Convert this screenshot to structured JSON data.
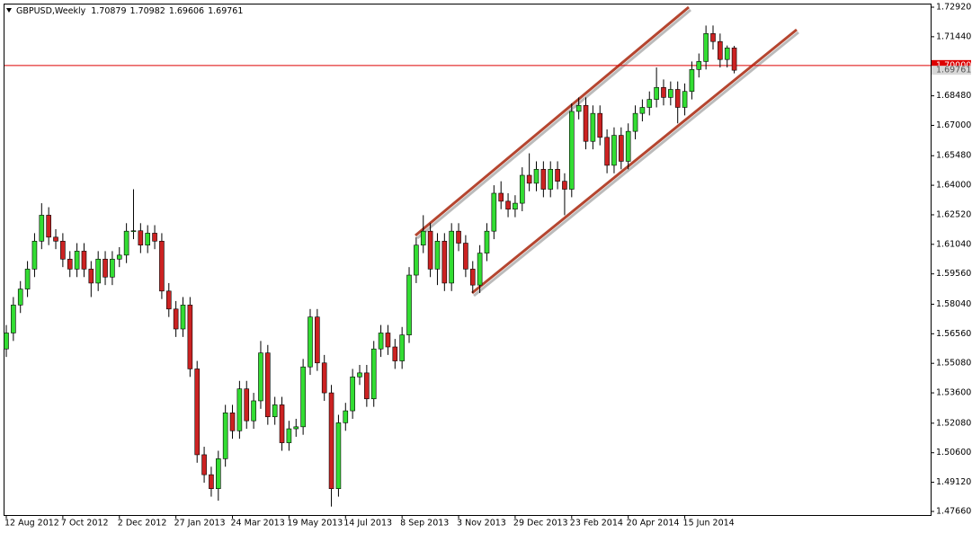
{
  "chart_data": {
    "type": "candlestick",
    "title": "GBPUSD,Weekly",
    "up_color": "#33dd33",
    "down_color": "#cc2222",
    "wick_color": "#000000",
    "ylim": [
      1.4748,
      1.731
    ],
    "yticks": [
      {
        "value": 1.7292,
        "label": "1.72920"
      },
      {
        "value": 1.7144,
        "label": "1.71440"
      },
      {
        "value": 1.6848,
        "label": "1.68480"
      },
      {
        "value": 1.67,
        "label": "1.67000"
      },
      {
        "value": 1.6548,
        "label": "1.65480"
      },
      {
        "value": 1.64,
        "label": "1.64000"
      },
      {
        "value": 1.6252,
        "label": "1.62520"
      },
      {
        "value": 1.6104,
        "label": "1.61040"
      },
      {
        "value": 1.5956,
        "label": "1.59560"
      },
      {
        "value": 1.5804,
        "label": "1.58040"
      },
      {
        "value": 1.5656,
        "label": "1.56560"
      },
      {
        "value": 1.5508,
        "label": "1.55080"
      },
      {
        "value": 1.536,
        "label": "1.53600"
      },
      {
        "value": 1.5208,
        "label": "1.52080"
      },
      {
        "value": 1.506,
        "label": "1.50600"
      },
      {
        "value": 1.4912,
        "label": "1.49120"
      },
      {
        "value": 1.4766,
        "label": "1.47660"
      }
    ],
    "level": {
      "value": 1.7,
      "label": "1.70000",
      "color": "#dd0000"
    },
    "categories": [
      "12 Aug 2012",
      null,
      null,
      null,
      null,
      null,
      null,
      null,
      "7 Oct 2012",
      null,
      null,
      null,
      null,
      null,
      null,
      null,
      "2 Dec 2012",
      null,
      null,
      null,
      null,
      null,
      null,
      null,
      "27 Jan 2013",
      null,
      null,
      null,
      null,
      null,
      null,
      null,
      "24 Mar 2013",
      null,
      null,
      null,
      null,
      null,
      null,
      null,
      "19 May 2013",
      null,
      null,
      null,
      null,
      null,
      null,
      null,
      "14 Jul 2013",
      null,
      null,
      null,
      null,
      null,
      null,
      null,
      "8 Sep 2013",
      null,
      null,
      null,
      null,
      null,
      null,
      null,
      "3 Nov 2013",
      null,
      null,
      null,
      null,
      null,
      null,
      null,
      "29 Dec 2013",
      null,
      null,
      null,
      null,
      null,
      null,
      null,
      "23 Feb 2014",
      null,
      null,
      null,
      null,
      null,
      null,
      null,
      "20 Apr 2014",
      null,
      null,
      null,
      null,
      null,
      null,
      null,
      "15 Jun 2014",
      null,
      null,
      null,
      null,
      null,
      null,
      null
    ],
    "candles": [
      [
        1.558,
        1.57,
        1.554,
        1.566
      ],
      [
        1.566,
        1.584,
        1.562,
        1.58
      ],
      [
        1.58,
        1.592,
        1.576,
        1.588
      ],
      [
        1.588,
        1.602,
        1.584,
        1.598
      ],
      [
        1.598,
        1.616,
        1.594,
        1.612
      ],
      [
        1.612,
        1.631,
        1.608,
        1.625
      ],
      [
        1.625,
        1.629,
        1.61,
        1.614
      ],
      [
        1.614,
        1.618,
        1.608,
        1.612
      ],
      [
        1.612,
        1.616,
        1.599,
        1.603
      ],
      [
        1.603,
        1.607,
        1.594,
        1.598
      ],
      [
        1.598,
        1.611,
        1.594,
        1.607
      ],
      [
        1.607,
        1.611,
        1.594,
        1.598
      ],
      [
        1.598,
        1.602,
        1.584,
        1.591
      ],
      [
        1.591,
        1.607,
        1.587,
        1.603
      ],
      [
        1.603,
        1.607,
        1.59,
        1.594
      ],
      [
        1.594,
        1.607,
        1.59,
        1.603
      ],
      [
        1.603,
        1.609,
        1.599,
        1.605
      ],
      [
        1.605,
        1.621,
        1.601,
        1.617
      ],
      [
        1.617,
        1.638,
        1.613,
        1.6172
      ],
      [
        1.6172,
        1.621,
        1.606,
        1.61
      ],
      [
        1.61,
        1.62,
        1.606,
        1.616
      ],
      [
        1.616,
        1.62,
        1.608,
        1.612
      ],
      [
        1.612,
        1.616,
        1.583,
        1.587
      ],
      [
        1.587,
        1.591,
        1.574,
        1.578
      ],
      [
        1.578,
        1.582,
        1.564,
        1.568
      ],
      [
        1.568,
        1.584,
        1.564,
        1.58
      ],
      [
        1.58,
        1.584,
        1.544,
        1.548
      ],
      [
        1.548,
        1.552,
        1.501,
        1.505
      ],
      [
        1.505,
        1.509,
        1.491,
        1.495
      ],
      [
        1.495,
        1.499,
        1.484,
        1.488
      ],
      [
        1.488,
        1.507,
        1.482,
        1.503
      ],
      [
        1.503,
        1.53,
        1.499,
        1.526
      ],
      [
        1.526,
        1.53,
        1.513,
        1.517
      ],
      [
        1.517,
        1.542,
        1.513,
        1.538
      ],
      [
        1.538,
        1.542,
        1.518,
        1.522
      ],
      [
        1.522,
        1.536,
        1.518,
        1.532
      ],
      [
        1.532,
        1.562,
        1.528,
        1.556
      ],
      [
        1.556,
        1.56,
        1.52,
        1.524
      ],
      [
        1.524,
        1.534,
        1.52,
        1.53
      ],
      [
        1.53,
        1.534,
        1.507,
        1.511
      ],
      [
        1.511,
        1.522,
        1.507,
        1.518
      ],
      [
        1.518,
        1.523,
        1.514,
        1.519
      ],
      [
        1.519,
        1.553,
        1.515,
        1.549
      ],
      [
        1.549,
        1.578,
        1.545,
        1.574
      ],
      [
        1.574,
        1.578,
        1.547,
        1.551
      ],
      [
        1.551,
        1.555,
        1.532,
        1.536
      ],
      [
        1.536,
        1.54,
        1.479,
        1.488
      ],
      [
        1.488,
        1.525,
        1.484,
        1.521
      ],
      [
        1.521,
        1.531,
        1.517,
        1.527
      ],
      [
        1.527,
        1.548,
        1.523,
        1.544
      ],
      [
        1.544,
        1.55,
        1.54,
        1.546
      ],
      [
        1.546,
        1.55,
        1.529,
        1.533
      ],
      [
        1.533,
        1.562,
        1.529,
        1.558
      ],
      [
        1.558,
        1.57,
        1.554,
        1.566
      ],
      [
        1.566,
        1.57,
        1.555,
        1.559
      ],
      [
        1.559,
        1.563,
        1.548,
        1.552
      ],
      [
        1.552,
        1.569,
        1.548,
        1.565
      ],
      [
        1.565,
        1.599,
        1.561,
        1.595
      ],
      [
        1.595,
        1.614,
        1.591,
        1.61
      ],
      [
        1.61,
        1.625,
        1.606,
        1.617
      ],
      [
        1.617,
        1.621,
        1.594,
        1.598
      ],
      [
        1.598,
        1.616,
        1.59,
        1.612
      ],
      [
        1.612,
        1.616,
        1.587,
        1.591
      ],
      [
        1.591,
        1.621,
        1.587,
        1.617
      ],
      [
        1.617,
        1.621,
        1.607,
        1.611
      ],
      [
        1.611,
        1.615,
        1.594,
        1.598
      ],
      [
        1.598,
        1.602,
        1.586,
        1.59
      ],
      [
        1.59,
        1.61,
        1.586,
        1.606
      ],
      [
        1.606,
        1.621,
        1.602,
        1.617
      ],
      [
        1.617,
        1.64,
        1.613,
        1.636
      ],
      [
        1.636,
        1.642,
        1.628,
        1.632
      ],
      [
        1.632,
        1.636,
        1.624,
        1.628
      ],
      [
        1.628,
        1.635,
        1.624,
        1.631
      ],
      [
        1.631,
        1.649,
        1.627,
        1.645
      ],
      [
        1.645,
        1.656,
        1.637,
        1.641
      ],
      [
        1.641,
        1.652,
        1.637,
        1.648
      ],
      [
        1.648,
        1.652,
        1.634,
        1.638
      ],
      [
        1.638,
        1.652,
        1.634,
        1.648
      ],
      [
        1.648,
        1.652,
        1.638,
        1.642
      ],
      [
        1.642,
        1.646,
        1.625,
        1.638
      ],
      [
        1.638,
        1.681,
        1.634,
        1.677
      ],
      [
        1.677,
        1.684,
        1.673,
        1.68
      ],
      [
        1.68,
        1.684,
        1.658,
        1.662
      ],
      [
        1.662,
        1.68,
        1.658,
        1.676
      ],
      [
        1.676,
        1.68,
        1.66,
        1.664
      ],
      [
        1.664,
        1.668,
        1.646,
        1.65
      ],
      [
        1.65,
        1.669,
        1.646,
        1.665
      ],
      [
        1.665,
        1.669,
        1.648,
        1.652
      ],
      [
        1.652,
        1.671,
        1.648,
        1.667
      ],
      [
        1.667,
        1.68,
        1.663,
        1.676
      ],
      [
        1.676,
        1.683,
        1.672,
        1.679
      ],
      [
        1.679,
        1.687,
        1.675,
        1.683
      ],
      [
        1.683,
        1.699,
        1.679,
        1.689
      ],
      [
        1.689,
        1.693,
        1.68,
        1.684
      ],
      [
        1.684,
        1.692,
        1.68,
        1.688
      ],
      [
        1.688,
        1.692,
        1.671,
        1.679
      ],
      [
        1.679,
        1.691,
        1.675,
        1.687
      ],
      [
        1.687,
        1.702,
        1.683,
        1.698
      ],
      [
        1.698,
        1.706,
        1.694,
        1.702
      ],
      [
        1.702,
        1.72,
        1.698,
        1.716
      ],
      [
        1.716,
        1.72,
        1.708,
        1.712
      ],
      [
        1.712,
        1.716,
        1.699,
        1.703
      ],
      [
        1.703,
        1.71,
        1.699,
        1.70879
      ],
      [
        1.70879,
        1.70982,
        1.69606,
        1.69761
      ]
    ]
  }
}
